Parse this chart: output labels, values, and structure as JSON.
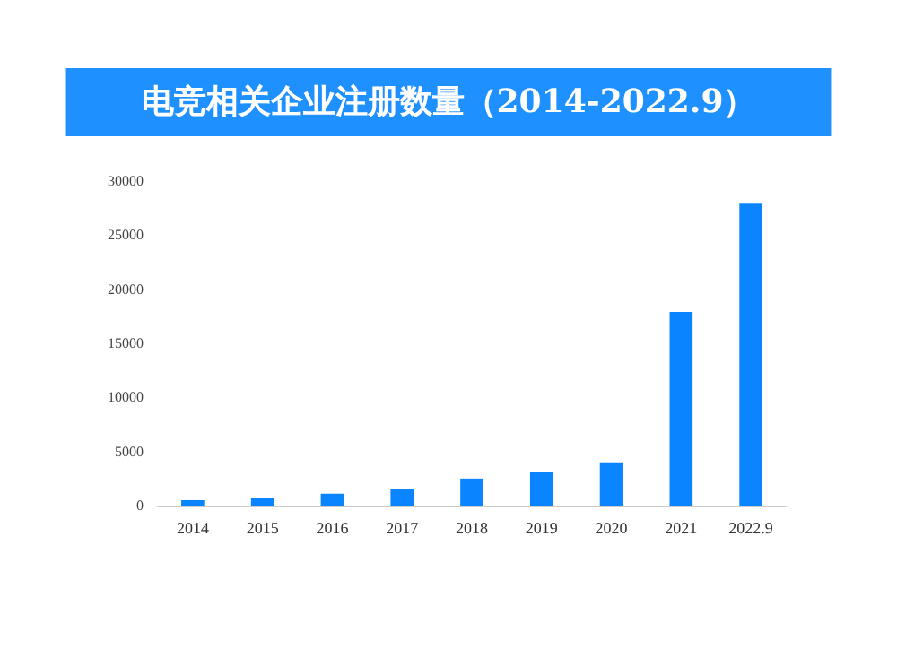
{
  "chart_data": {
    "type": "bar",
    "title": "电竞相关企业注册数量（2014-2022.9）",
    "categories": [
      "2014",
      "2015",
      "2016",
      "2017",
      "2018",
      "2019",
      "2020",
      "2021",
      "2022.9"
    ],
    "values": [
      500,
      700,
      1100,
      1500,
      2500,
      3100,
      4000,
      17900,
      27900
    ],
    "color": "#0a84ff",
    "ylim": [
      0,
      30000
    ],
    "yticks": [
      0,
      5000,
      10000,
      15000,
      20000,
      25000,
      30000
    ],
    "grid": false
  }
}
